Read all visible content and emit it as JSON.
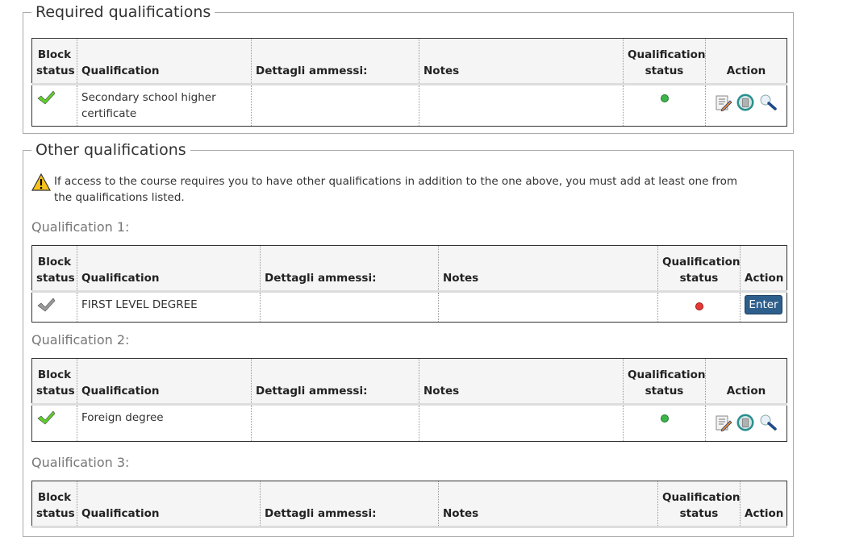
{
  "headers": {
    "block": "Block status",
    "qualification": "Qualification",
    "details": "Dettagli ammessi:",
    "notes": "Notes",
    "qstatus": "Qualification status",
    "action": "Action"
  },
  "required": {
    "legend": "Required qualifications",
    "row": {
      "qualification": "Secondary school higher certificate",
      "block_icon": "check-green",
      "status_color": "#3bb54a"
    }
  },
  "other": {
    "legend": "Other qualifications",
    "warning": "If access to the course requires you to have other qualifications in addition to the one above, you must add at least one from the qualifications listed.",
    "groups": [
      {
        "label": "Qualification 1:",
        "qualification": "FIRST LEVEL DEGREE",
        "block_icon": "check-gray",
        "status_color": "#e53935",
        "action": "Enter"
      },
      {
        "label": "Qualification 2:",
        "qualification": "Foreign degree",
        "block_icon": "check-green",
        "status_color": "#3bb54a"
      },
      {
        "label": "Qualification 3:"
      }
    ]
  }
}
